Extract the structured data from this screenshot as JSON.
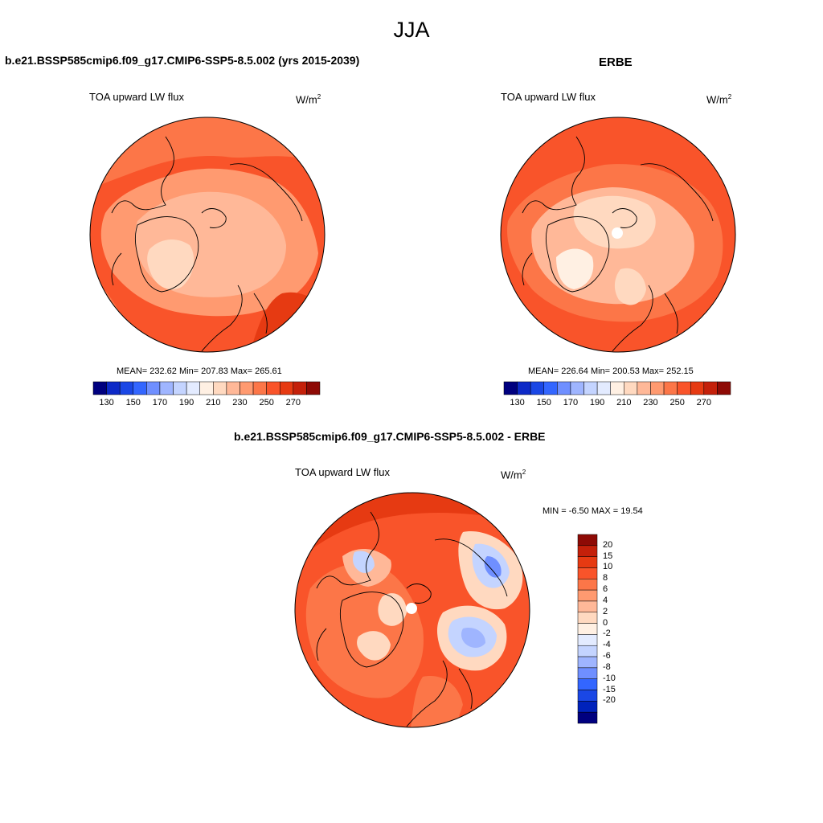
{
  "season_title": "JJA",
  "panels": [
    {
      "title": "b.e21.BSSP585cmip6.f09_g17.CMIP6-SSP5-8.5.002 (yrs 2015-2039)",
      "variable": "TOA upward LW flux",
      "units": "W/m",
      "units_sup": "2",
      "stats_text": "MEAN= 232.62  Min= 207.83  Max= 265.61",
      "stats": {
        "mean": 232.62,
        "min": 207.83,
        "max": 265.61
      }
    },
    {
      "title": "ERBE",
      "variable": "TOA upward LW flux",
      "units": "W/m",
      "units_sup": "2",
      "stats_text": "MEAN= 226.64  Min= 200.53  Max= 252.15",
      "stats": {
        "mean": 226.64,
        "min": 200.53,
        "max": 252.15
      }
    },
    {
      "title": "b.e21.BSSP585cmip6.f09_g17.CMIP6-SSP5-8.5.002 - ERBE",
      "variable": "TOA upward LW flux",
      "units": "W/m",
      "units_sup": "2",
      "stats_text": "MIN =  -6.50 MAX =  19.54",
      "stats": {
        "min": -6.5,
        "max": 19.54
      }
    }
  ],
  "colorbar_abs": {
    "colors": [
      "#00007f",
      "#0d29c7",
      "#1a47e5",
      "#3366ff",
      "#6f8fff",
      "#9fb5ff",
      "#c4d4ff",
      "#e3ebff",
      "#fff0e3",
      "#ffd9c0",
      "#ffb898",
      "#ff9a70",
      "#fc7648",
      "#f9542a",
      "#e63a12",
      "#c4200a",
      "#8e0a05"
    ],
    "labels": [
      "130",
      "150",
      "170",
      "190",
      "210",
      "230",
      "250",
      "270"
    ]
  },
  "colorbar_diff": {
    "colors": [
      "#00007f",
      "#0022bb",
      "#1a47e5",
      "#3366ff",
      "#6f8fff",
      "#9fb5ff",
      "#c4d4ff",
      "#e3ebff",
      "#fff0e3",
      "#ffd9c0",
      "#ffb898",
      "#ff9a70",
      "#fc7648",
      "#f9542a",
      "#e63a12",
      "#c4200a",
      "#8e0a05"
    ],
    "labels": [
      "20",
      "15",
      "10",
      "8",
      "6",
      "4",
      "2",
      "0",
      "-2",
      "-4",
      "-6",
      "-8",
      "-10",
      "-15",
      "-20"
    ]
  },
  "map_colors": {
    "base_model": "#f9542a",
    "base_obs": "#f9542a",
    "base_diff": "#f9542a",
    "ocean_edge": "#e63a12",
    "mid": "#fc7648",
    "light": "#ff9a70",
    "lighter": "#ffb898",
    "pale": "#ffd9c0",
    "cream": "#fff0e3",
    "blue1": "#c4d4ff",
    "blue2": "#9fb5ff",
    "blue3": "#6f8fff",
    "deep": "#c4200a"
  }
}
